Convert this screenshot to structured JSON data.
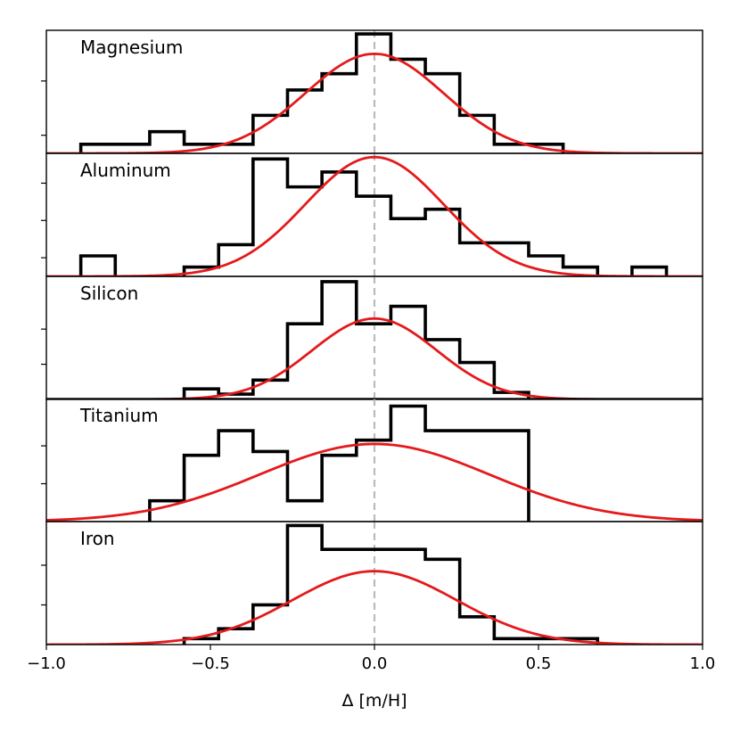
{
  "chart_data": {
    "type": "histogram",
    "xlabel": "Δ [m/H]",
    "xlim": [
      -1.0,
      1.0
    ],
    "xticks": [
      -1.0,
      -0.5,
      0.0,
      0.5,
      1.0
    ],
    "xtick_labels": [
      "−1.0",
      "−0.5",
      "0.0",
      "0.5",
      "1.0"
    ],
    "reference_line": {
      "x": 0.0,
      "style": "dashed",
      "color": "#bbbbbb"
    },
    "colors": {
      "histogram": "#000000",
      "fit": "#e41a1c",
      "reference": "#bbbbbb"
    },
    "panels": [
      {
        "name": "Magnesium",
        "ylim": [
          0,
          6.8
        ],
        "yticks": [
          1,
          4
        ],
        "bins": [
          {
            "x0": -0.895,
            "x1": -0.685,
            "count": 0.5
          },
          {
            "x0": -0.685,
            "x1": -0.58,
            "count": 1.2
          },
          {
            "x0": -0.58,
            "x1": -0.37,
            "count": 0.5
          },
          {
            "x0": -0.37,
            "x1": -0.265,
            "count": 2.1
          },
          {
            "x0": -0.265,
            "x1": -0.16,
            "count": 3.5
          },
          {
            "x0": -0.16,
            "x1": -0.055,
            "count": 4.4
          },
          {
            "x0": -0.055,
            "x1": 0.05,
            "count": 6.6
          },
          {
            "x0": 0.05,
            "x1": 0.155,
            "count": 5.2
          },
          {
            "x0": 0.155,
            "x1": 0.26,
            "count": 4.4
          },
          {
            "x0": 0.26,
            "x1": 0.365,
            "count": 2.1
          },
          {
            "x0": 0.365,
            "x1": 0.575,
            "count": 0.5
          }
        ],
        "fit": {
          "peak": 5.5,
          "mu": 0.0,
          "sigma": 0.21
        }
      },
      {
        "name": "Aluminum",
        "ylim": [
          0,
          6.6
        ],
        "yticks": [
          1,
          3,
          5
        ],
        "bins": [
          {
            "x0": -0.895,
            "x1": -0.79,
            "count": 1.1
          },
          {
            "x0": -0.58,
            "x1": -0.475,
            "count": 0.5
          },
          {
            "x0": -0.475,
            "x1": -0.37,
            "count": 1.7
          },
          {
            "x0": -0.37,
            "x1": -0.265,
            "count": 6.3
          },
          {
            "x0": -0.265,
            "x1": -0.16,
            "count": 4.8
          },
          {
            "x0": -0.16,
            "x1": -0.055,
            "count": 5.6
          },
          {
            "x0": -0.055,
            "x1": 0.05,
            "count": 4.3
          },
          {
            "x0": 0.05,
            "x1": 0.155,
            "count": 3.1
          },
          {
            "x0": 0.155,
            "x1": 0.26,
            "count": 3.6
          },
          {
            "x0": 0.26,
            "x1": 0.47,
            "count": 1.8
          },
          {
            "x0": 0.47,
            "x1": 0.575,
            "count": 1.1
          },
          {
            "x0": 0.575,
            "x1": 0.68,
            "count": 0.5
          },
          {
            "x0": 0.785,
            "x1": 0.89,
            "count": 0.5
          }
        ],
        "fit": {
          "peak": 6.4,
          "mu": 0.0,
          "sigma": 0.21
        }
      },
      {
        "name": "Silicon",
        "ylim": [
          0,
          7.0
        ],
        "yticks": [
          2,
          4
        ],
        "bins": [
          {
            "x0": -0.58,
            "x1": -0.475,
            "count": 0.6
          },
          {
            "x0": -0.475,
            "x1": -0.37,
            "count": 0.3
          },
          {
            "x0": -0.37,
            "x1": -0.265,
            "count": 1.1
          },
          {
            "x0": -0.265,
            "x1": -0.16,
            "count": 4.3
          },
          {
            "x0": -0.16,
            "x1": -0.055,
            "count": 6.7
          },
          {
            "x0": -0.055,
            "x1": 0.05,
            "count": 4.3
          },
          {
            "x0": 0.05,
            "x1": 0.155,
            "count": 5.3
          },
          {
            "x0": 0.155,
            "x1": 0.26,
            "count": 3.4
          },
          {
            "x0": 0.26,
            "x1": 0.365,
            "count": 2.1
          },
          {
            "x0": 0.365,
            "x1": 0.47,
            "count": 0.4
          }
        ],
        "fit": {
          "peak": 4.6,
          "mu": 0.0,
          "sigma": 0.19
        }
      },
      {
        "name": "Titanium",
        "ylim": [
          0,
          6.5
        ],
        "yticks": [
          2,
          4
        ],
        "bins": [
          {
            "x0": -0.685,
            "x1": -0.58,
            "count": 1.1
          },
          {
            "x0": -0.58,
            "x1": -0.475,
            "count": 3.5
          },
          {
            "x0": -0.475,
            "x1": -0.37,
            "count": 4.8
          },
          {
            "x0": -0.37,
            "x1": -0.265,
            "count": 3.7
          },
          {
            "x0": -0.265,
            "x1": -0.16,
            "count": 1.1
          },
          {
            "x0": -0.16,
            "x1": -0.055,
            "count": 3.5
          },
          {
            "x0": -0.055,
            "x1": 0.05,
            "count": 4.3
          },
          {
            "x0": 0.05,
            "x1": 0.155,
            "count": 6.1
          },
          {
            "x0": 0.155,
            "x1": 0.47,
            "count": 4.8
          }
        ],
        "fit": {
          "peak": 4.1,
          "mu": 0.0,
          "sigma": 0.35
        }
      },
      {
        "name": "Iron",
        "ylim": [
          0,
          6.2
        ],
        "yticks": [
          2,
          4
        ],
        "bins": [
          {
            "x0": -0.58,
            "x1": -0.475,
            "count": 0.3
          },
          {
            "x0": -0.475,
            "x1": -0.37,
            "count": 0.8
          },
          {
            "x0": -0.37,
            "x1": -0.265,
            "count": 2.0
          },
          {
            "x0": -0.265,
            "x1": -0.16,
            "count": 6.0
          },
          {
            "x0": -0.16,
            "x1": 0.155,
            "count": 4.8
          },
          {
            "x0": 0.155,
            "x1": 0.26,
            "count": 4.3
          },
          {
            "x0": 0.26,
            "x1": 0.365,
            "count": 1.4
          },
          {
            "x0": 0.365,
            "x1": 0.68,
            "count": 0.3
          }
        ],
        "fit": {
          "peak": 3.7,
          "mu": 0.0,
          "sigma": 0.25
        }
      }
    ]
  }
}
